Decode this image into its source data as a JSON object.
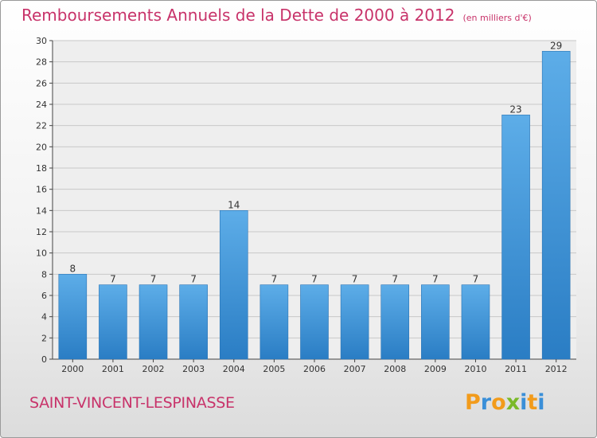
{
  "header": {
    "title": "Remboursements Annuels de la Dette de 2000 à 2012",
    "unit": "(en milliers d'€)"
  },
  "footer": {
    "commune": "SAINT-VINCENT-LESPINASSE",
    "logo_letters": [
      {
        "ch": "P",
        "color": "#f29b1b"
      },
      {
        "ch": "r",
        "color": "#3a8fd8"
      },
      {
        "ch": "o",
        "color": "#f29b1b"
      },
      {
        "ch": "x",
        "color": "#7ab928"
      },
      {
        "ch": "i",
        "color": "#3a8fd8"
      },
      {
        "ch": "t",
        "color": "#f29b1b"
      },
      {
        "ch": "i",
        "color": "#3a8fd8"
      }
    ]
  },
  "colors": {
    "bar_light": "#5dade8",
    "bar_dark": "#2a7dc4",
    "title": "#c8336a",
    "grid": "#c8c8c8"
  },
  "chart_data": {
    "type": "bar",
    "categories": [
      "2000",
      "2001",
      "2002",
      "2003",
      "2004",
      "2005",
      "2006",
      "2007",
      "2008",
      "2009",
      "2010",
      "2011",
      "2012"
    ],
    "values": [
      8,
      7,
      7,
      7,
      14,
      7,
      7,
      7,
      7,
      7,
      7,
      23,
      29
    ],
    "ylim": [
      0,
      30
    ],
    "yticks": [
      0,
      2,
      4,
      6,
      8,
      10,
      12,
      14,
      16,
      18,
      20,
      22,
      24,
      26,
      28,
      30
    ],
    "grid": true,
    "data_labels": true
  }
}
